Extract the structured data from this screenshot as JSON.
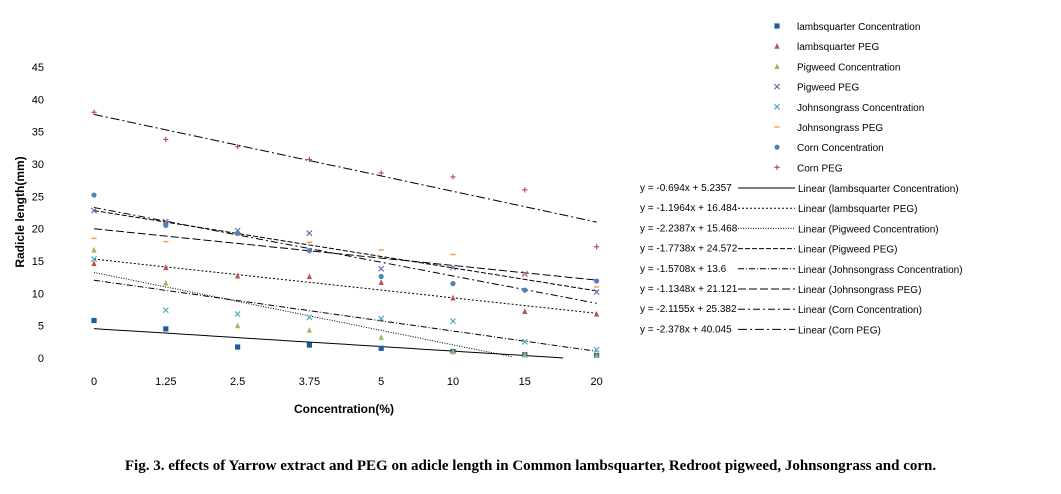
{
  "caption": "Fig. 3. effects of Yarrow extract and PEG on adicle length in Common lambsquarter, Redroot pigweed, Johnsongrass and corn.",
  "chart_data": {
    "type": "scatter",
    "title": "",
    "xlabel": "Concentration(%)",
    "ylabel": "Radicle length(mm)",
    "categories": [
      "0",
      "1.25",
      "2.5",
      "3.75",
      "5",
      "10",
      "15",
      "20"
    ],
    "ylim": [
      0,
      45
    ],
    "yticks": [
      "0",
      "5",
      "10",
      "15",
      "20",
      "25",
      "30",
      "35",
      "40",
      "45"
    ],
    "grid": false,
    "legend_position": "right",
    "series": [
      {
        "name": "lambsquarter Concentration",
        "marker": "square",
        "color": "#1f5c99",
        "values": [
          5.8,
          4.5,
          1.7,
          2.0,
          1.5,
          1.0,
          0.5,
          0.4
        ]
      },
      {
        "name": "lambsquarter PEG",
        "marker": "triangle",
        "color": "#c0504d",
        "values": [
          14.6,
          14.0,
          12.7,
          12.6,
          11.7,
          9.3,
          7.2,
          6.8
        ]
      },
      {
        "name": "Pigweed Concentration",
        "marker": "triangle",
        "color": "#9bbb59",
        "values": [
          16.7,
          11.6,
          5.0,
          4.3,
          3.2,
          1.0,
          0.5,
          0.4
        ]
      },
      {
        "name": "Pigweed PEG",
        "marker": "x",
        "color": "#8064a2",
        "values": [
          22.8,
          21.1,
          19.7,
          19.3,
          13.8,
          14.0,
          13.0,
          10.2
        ]
      },
      {
        "name": "Johnsongrass Concentration",
        "marker": "x",
        "color": "#4bacc6",
        "values": [
          15.3,
          7.4,
          6.8,
          6.3,
          6.1,
          5.7,
          2.5,
          1.3
        ]
      },
      {
        "name": "Johnsongrass PEG",
        "marker": "dash",
        "color": "#f79646",
        "values": [
          18.5,
          18.0,
          19.0,
          17.9,
          16.7,
          16.0,
          13.0,
          11.0
        ]
      },
      {
        "name": "Corn Concentration",
        "marker": "circle",
        "color": "#4f81bd",
        "values": [
          25.2,
          20.5,
          19.3,
          16.6,
          12.6,
          11.5,
          10.5,
          11.9
        ]
      },
      {
        "name": "Corn PEG",
        "marker": "plus",
        "color": "#c0504d",
        "values": [
          38.0,
          33.8,
          32.7,
          30.7,
          28.6,
          28.0,
          26.0,
          17.2
        ]
      }
    ],
    "trendlines": [
      {
        "name": "Linear (lambsquarter Concentration)",
        "equation": "y = -0.694x + 5.2357",
        "slope": -0.694,
        "intercept": 5.2357,
        "dash": ""
      },
      {
        "name": "Linear (lambsquarter PEG)",
        "equation": "y = -1.1964x + 16.484",
        "slope": -1.1964,
        "intercept": 16.484,
        "dash": "2,2"
      },
      {
        "name": "Linear (Pigweed Concentration)",
        "equation": "y = -2.2387x + 15.468",
        "slope": -2.2387,
        "intercept": 15.468,
        "dash": "1,1.5"
      },
      {
        "name": "Linear (Pigweed PEG)",
        "equation": "y = -1.7738x + 24.572",
        "slope": -1.7738,
        "intercept": 24.572,
        "dash": "5,2"
      },
      {
        "name": "Linear (Johnsongrass Concentration)",
        "equation": "y = -1.5708x + 13.6",
        "slope": -1.5708,
        "intercept": 13.6,
        "dash": "6,2,1,2"
      },
      {
        "name": "Linear (Johnsongrass PEG)",
        "equation": "y = -1.1348x + 21.121",
        "slope": -1.1348,
        "intercept": 21.121,
        "dash": "8,3"
      },
      {
        "name": "Linear (Corn Concentration)",
        "equation": "y = -2.1155x + 25.382",
        "slope": -2.1155,
        "intercept": 25.382,
        "dash": "7,3,2,3"
      },
      {
        "name": "Linear (Corn PEG)",
        "equation": "y = -2.378x + 40.045",
        "slope": -2.378,
        "intercept": 40.045,
        "dash": "9,3,2,3"
      }
    ]
  }
}
